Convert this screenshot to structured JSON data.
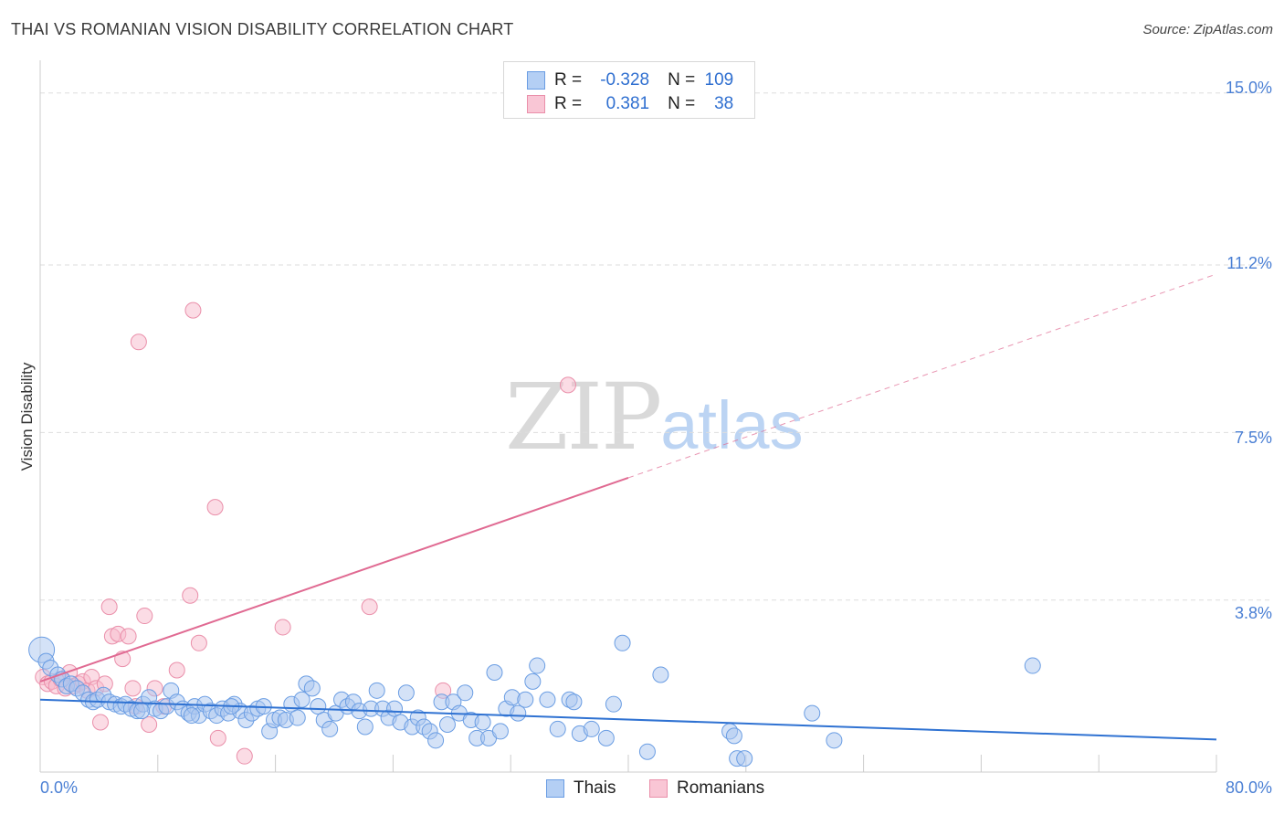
{
  "header": {
    "title": "THAI VS ROMANIAN VISION DISABILITY CORRELATION CHART",
    "source": "Source: ZipAtlas.com"
  },
  "watermark": {
    "zip": "ZIP",
    "atlas": "atlas"
  },
  "legend_top": {
    "rows": [
      {
        "r_label": "R =",
        "r_value": "-0.328",
        "n_label": "N =",
        "n_value": "109"
      },
      {
        "r_label": "R =",
        "r_value": "0.381",
        "n_label": "N =",
        "n_value": "38"
      }
    ]
  },
  "legend_bottom": {
    "thais": "Thais",
    "romanians": "Romanians"
  },
  "colors": {
    "thais_fill": "#a9c6f0",
    "thais_stroke": "#6a9de3",
    "thais_line": "#2f72d2",
    "romanians_fill": "#f7b9cc",
    "romanians_stroke": "#ea8faa",
    "romanians_line": "#e06a92",
    "tick_text": "#4a7fd4",
    "grid": "#dddddd"
  },
  "chart_data": {
    "type": "scatter",
    "title": "THAI VS ROMANIAN VISION DISABILITY CORRELATION CHART",
    "xlabel": "",
    "ylabel": "Vision Disability",
    "xlim": [
      0,
      80
    ],
    "ylim": [
      0,
      15.5
    ],
    "x_tick_labels": [
      "0.0%",
      "80.0%"
    ],
    "y_ticks": [
      3.8,
      7.5,
      11.2,
      15.0
    ],
    "y_tick_labels": [
      "3.8%",
      "7.5%",
      "11.2%",
      "15.0%"
    ],
    "grid": true,
    "legend": "top-center",
    "series": [
      {
        "name": "Thais",
        "R": -0.328,
        "N": 109,
        "trend": {
          "x": [
            0,
            80
          ],
          "y": [
            1.6,
            0.72
          ],
          "dashed_from": null
        },
        "points": [
          [
            0.1,
            2.7
          ],
          [
            0.4,
            2.45
          ],
          [
            0.7,
            2.3
          ],
          [
            1.2,
            2.15
          ],
          [
            1.5,
            2.05
          ],
          [
            1.8,
            1.9
          ],
          [
            2.1,
            1.95
          ],
          [
            2.5,
            1.85
          ],
          [
            2.9,
            1.75
          ],
          [
            3.3,
            1.6
          ],
          [
            3.6,
            1.55
          ],
          [
            3.9,
            1.6
          ],
          [
            4.3,
            1.7
          ],
          [
            4.7,
            1.55
          ],
          [
            5.1,
            1.5
          ],
          [
            5.5,
            1.45
          ],
          [
            5.8,
            1.5
          ],
          [
            6.2,
            1.4
          ],
          [
            6.6,
            1.35
          ],
          [
            7.0,
            1.5
          ],
          [
            7.4,
            1.65
          ],
          [
            7.8,
            1.4
          ],
          [
            8.2,
            1.35
          ],
          [
            8.6,
            1.45
          ],
          [
            8.9,
            1.8
          ],
          [
            9.3,
            1.55
          ],
          [
            9.7,
            1.4
          ],
          [
            10.1,
            1.3
          ],
          [
            10.5,
            1.45
          ],
          [
            10.8,
            1.25
          ],
          [
            11.2,
            1.5
          ],
          [
            11.6,
            1.35
          ],
          [
            12.0,
            1.25
          ],
          [
            12.4,
            1.4
          ],
          [
            12.8,
            1.3
          ],
          [
            13.2,
            1.5
          ],
          [
            13.6,
            1.35
          ],
          [
            14.0,
            1.15
          ],
          [
            14.4,
            1.3
          ],
          [
            14.8,
            1.4
          ],
          [
            15.2,
            1.45
          ],
          [
            15.6,
            0.9
          ],
          [
            15.9,
            1.15
          ],
          [
            16.3,
            1.2
          ],
          [
            16.7,
            1.15
          ],
          [
            17.1,
            1.5
          ],
          [
            17.5,
            1.2
          ],
          [
            17.8,
            1.6
          ],
          [
            18.1,
            1.95
          ],
          [
            18.5,
            1.85
          ],
          [
            18.9,
            1.45
          ],
          [
            19.3,
            1.15
          ],
          [
            19.7,
            0.95
          ],
          [
            20.1,
            1.3
          ],
          [
            20.5,
            1.6
          ],
          [
            20.9,
            1.45
          ],
          [
            21.3,
            1.55
          ],
          [
            21.7,
            1.35
          ],
          [
            22.1,
            1.0
          ],
          [
            22.5,
            1.4
          ],
          [
            22.9,
            1.8
          ],
          [
            23.3,
            1.4
          ],
          [
            23.7,
            1.2
          ],
          [
            24.1,
            1.4
          ],
          [
            24.5,
            1.1
          ],
          [
            24.9,
            1.75
          ],
          [
            25.3,
            1.0
          ],
          [
            25.7,
            1.2
          ],
          [
            26.1,
            1.0
          ],
          [
            26.5,
            0.9
          ],
          [
            26.9,
            0.7
          ],
          [
            27.3,
            1.55
          ],
          [
            27.7,
            1.05
          ],
          [
            28.1,
            1.55
          ],
          [
            28.5,
            1.3
          ],
          [
            28.9,
            1.75
          ],
          [
            29.3,
            1.15
          ],
          [
            29.7,
            0.75
          ],
          [
            30.1,
            1.1
          ],
          [
            30.5,
            0.75
          ],
          [
            30.9,
            2.2
          ],
          [
            31.3,
            0.9
          ],
          [
            31.7,
            1.4
          ],
          [
            32.1,
            1.65
          ],
          [
            32.5,
            1.3
          ],
          [
            33.0,
            1.6
          ],
          [
            33.5,
            2.0
          ],
          [
            33.8,
            2.35
          ],
          [
            34.5,
            1.6
          ],
          [
            35.2,
            0.95
          ],
          [
            36.0,
            1.6
          ],
          [
            36.3,
            1.55
          ],
          [
            36.7,
            0.85
          ],
          [
            37.5,
            0.95
          ],
          [
            38.5,
            0.75
          ],
          [
            39.0,
            1.5
          ],
          [
            39.6,
            2.85
          ],
          [
            41.3,
            0.45
          ],
          [
            42.2,
            2.15
          ],
          [
            46.9,
            0.9
          ],
          [
            47.2,
            0.8
          ],
          [
            47.4,
            0.3
          ],
          [
            47.9,
            0.3
          ],
          [
            52.5,
            1.3
          ],
          [
            54.0,
            0.7
          ],
          [
            67.5,
            2.35
          ],
          [
            13.0,
            1.45
          ],
          [
            10.3,
            1.25
          ],
          [
            6.9,
            1.35
          ]
        ]
      },
      {
        "name": "Romanians",
        "R": 0.381,
        "N": 38,
        "trend": {
          "x": [
            0,
            80
          ],
          "y": [
            2.0,
            11.0
          ],
          "dashed_from": 40
        },
        "points": [
          [
            0.2,
            2.1
          ],
          [
            0.5,
            1.95
          ],
          [
            0.8,
            2.0
          ],
          [
            1.1,
            1.9
          ],
          [
            1.4,
            2.05
          ],
          [
            1.7,
            1.85
          ],
          [
            2.0,
            2.2
          ],
          [
            2.3,
            1.9
          ],
          [
            2.6,
            1.95
          ],
          [
            2.9,
            2.0
          ],
          [
            3.2,
            1.8
          ],
          [
            3.5,
            2.1
          ],
          [
            3.8,
            1.85
          ],
          [
            4.1,
            1.1
          ],
          [
            4.4,
            1.95
          ],
          [
            4.7,
            3.65
          ],
          [
            4.9,
            3.0
          ],
          [
            5.3,
            3.05
          ],
          [
            5.6,
            2.5
          ],
          [
            6.0,
            3.0
          ],
          [
            6.3,
            1.85
          ],
          [
            6.5,
            1.45
          ],
          [
            6.7,
            9.5
          ],
          [
            7.1,
            3.45
          ],
          [
            7.4,
            1.05
          ],
          [
            7.8,
            1.85
          ],
          [
            8.4,
            1.45
          ],
          [
            9.3,
            2.25
          ],
          [
            10.2,
            3.9
          ],
          [
            10.4,
            10.2
          ],
          [
            10.8,
            2.85
          ],
          [
            11.9,
            5.85
          ],
          [
            12.1,
            0.75
          ],
          [
            13.9,
            0.35
          ],
          [
            16.5,
            3.2
          ],
          [
            22.4,
            3.65
          ],
          [
            27.4,
            1.8
          ],
          [
            35.9,
            8.55
          ]
        ]
      }
    ]
  }
}
